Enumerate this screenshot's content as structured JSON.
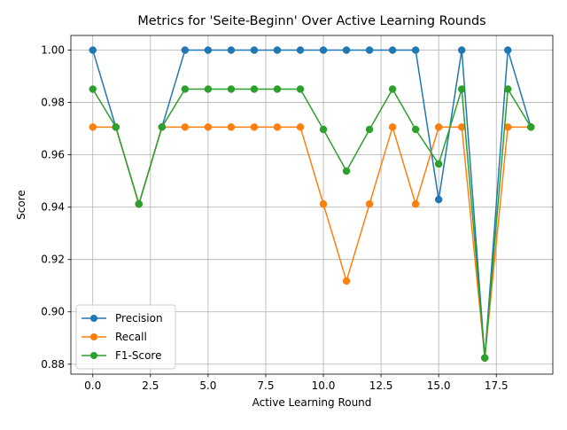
{
  "chart_data": {
    "type": "line",
    "title": "Metrics for 'Seite-Beginn' Over Active Learning Rounds",
    "xlabel": "Active Learning Round",
    "ylabel": "Score",
    "xlim": [
      -0.95,
      19.95
    ],
    "ylim": [
      0.8762,
      1.0056
    ],
    "xticks": [
      0.0,
      2.5,
      5.0,
      7.5,
      10.0,
      12.5,
      15.0,
      17.5
    ],
    "xtick_labels": [
      "0.0",
      "2.5",
      "5.0",
      "7.5",
      "10.0",
      "12.5",
      "15.0",
      "17.5"
    ],
    "yticks": [
      0.88,
      0.9,
      0.92,
      0.94,
      0.96,
      0.98,
      1.0
    ],
    "ytick_labels": [
      "0.88",
      "0.90",
      "0.92",
      "0.94",
      "0.96",
      "0.98",
      "1.00"
    ],
    "grid": true,
    "legend_position": "lower-left",
    "x": [
      0,
      1,
      2,
      3,
      4,
      5,
      6,
      7,
      8,
      9,
      10,
      11,
      12,
      13,
      14,
      15,
      16,
      17,
      18,
      19
    ],
    "series": [
      {
        "name": "Precision",
        "color": "#1f77b4",
        "values": [
          1.0,
          0.9706,
          0.9412,
          0.9706,
          1.0,
          1.0,
          1.0,
          1.0,
          1.0,
          1.0,
          1.0,
          1.0,
          1.0,
          1.0,
          1.0,
          0.9429,
          1.0,
          0.8824,
          1.0,
          0.9706
        ]
      },
      {
        "name": "Recall",
        "color": "#ff7f0e",
        "values": [
          0.9706,
          0.9706,
          0.9412,
          0.9706,
          0.9706,
          0.9706,
          0.9706,
          0.9706,
          0.9706,
          0.9706,
          0.9412,
          0.9118,
          0.9412,
          0.9706,
          0.9412,
          0.9706,
          0.9706,
          0.8824,
          0.9706,
          0.9706
        ]
      },
      {
        "name": "F1-Score",
        "color": "#2ca02c",
        "values": [
          0.9851,
          0.9706,
          0.9412,
          0.9706,
          0.9851,
          0.9851,
          0.9851,
          0.9851,
          0.9851,
          0.9851,
          0.9697,
          0.9538,
          0.9697,
          0.9851,
          0.9697,
          0.9565,
          0.9851,
          0.8824,
          0.9851,
          0.9706
        ]
      }
    ]
  }
}
